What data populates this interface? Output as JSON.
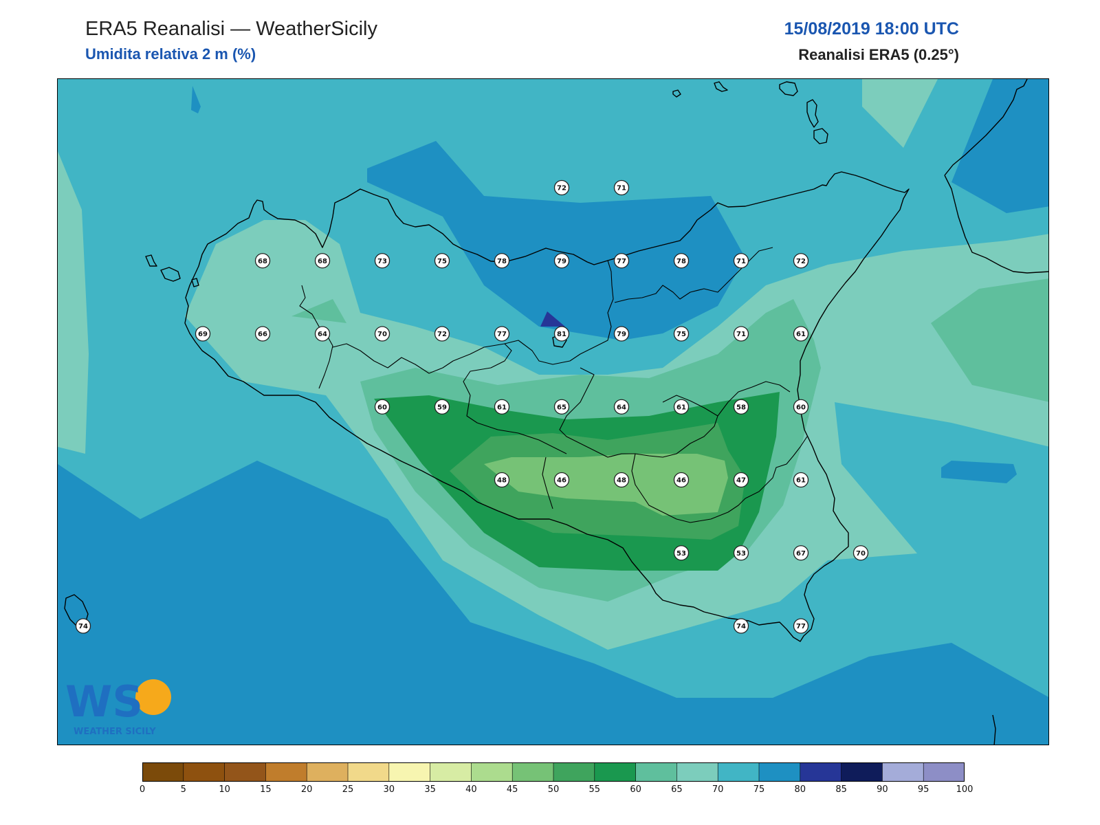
{
  "header": {
    "title": "ERA5 Reanalisi — WeatherSicily",
    "subtitle": "Umidita relativa 2 m (%)",
    "datetime": "15/08/2019 18:00 UTC",
    "source": "Reanalisi ERA5 (0.25°)"
  },
  "colors": {
    "accent": "#1a56b0",
    "levels": [
      "#7b4a0a",
      "#8e510f",
      "#93551a",
      "#c07d2c",
      "#deb05e",
      "#f1d98a",
      "#f7f5b0",
      "#d7eca4",
      "#acdc8e",
      "#76c276",
      "#3fa45d",
      "#1a984f",
      "#5fbf9d",
      "#7ccdbc",
      "#41b5c5",
      "#1e90c2",
      "#263697",
      "#0f1c5a",
      "#a4acd9",
      "#8d8ec6"
    ]
  },
  "logo": {
    "text": "WS",
    "caption": "WEATHER SICILY"
  },
  "colorbar": {
    "ticks": [
      "0",
      "5",
      "10",
      "15",
      "20",
      "25",
      "30",
      "35",
      "40",
      "45",
      "50",
      "55",
      "60",
      "65",
      "70",
      "75",
      "80",
      "85",
      "90",
      "95",
      "100"
    ]
  },
  "stations": [
    {
      "v": "72",
      "lon": 15.0,
      "lat": 38.45
    },
    {
      "v": "71",
      "lon": 15.5,
      "lat": 38.45
    },
    {
      "v": "68",
      "lon": 12.5,
      "lat": 38.2
    },
    {
      "v": "68",
      "lon": 13.0,
      "lat": 38.2
    },
    {
      "v": "73",
      "lon": 13.5,
      "lat": 38.2
    },
    {
      "v": "75",
      "lon": 14.0,
      "lat": 38.2
    },
    {
      "v": "78",
      "lon": 14.5,
      "lat": 38.2
    },
    {
      "v": "79",
      "lon": 15.0,
      "lat": 38.2
    },
    {
      "v": "77",
      "lon": 15.5,
      "lat": 38.2
    },
    {
      "v": "78",
      "lon": 16.0,
      "lat": 38.2
    },
    {
      "v": "71",
      "lon": 16.5,
      "lat": 38.2
    },
    {
      "v": "72",
      "lon": 17.0,
      "lat": 38.2
    },
    {
      "v": "69",
      "lon": 12.0,
      "lat": 37.95
    },
    {
      "v": "66",
      "lon": 12.5,
      "lat": 37.95
    },
    {
      "v": "64",
      "lon": 13.0,
      "lat": 37.95
    },
    {
      "v": "70",
      "lon": 13.5,
      "lat": 37.95
    },
    {
      "v": "72",
      "lon": 14.0,
      "lat": 37.95
    },
    {
      "v": "77",
      "lon": 14.5,
      "lat": 37.95
    },
    {
      "v": "81",
      "lon": 15.0,
      "lat": 37.95
    },
    {
      "v": "79",
      "lon": 15.5,
      "lat": 37.95
    },
    {
      "v": "75",
      "lon": 16.0,
      "lat": 37.95
    },
    {
      "v": "71",
      "lon": 16.5,
      "lat": 37.95
    },
    {
      "v": "61",
      "lon": 17.0,
      "lat": 37.95
    },
    {
      "v": "60",
      "lon": 13.5,
      "lat": 37.7
    },
    {
      "v": "59",
      "lon": 14.0,
      "lat": 37.7
    },
    {
      "v": "61",
      "lon": 14.5,
      "lat": 37.7
    },
    {
      "v": "65",
      "lon": 15.0,
      "lat": 37.7
    },
    {
      "v": "64",
      "lon": 15.5,
      "lat": 37.7
    },
    {
      "v": "61",
      "lon": 16.0,
      "lat": 37.7
    },
    {
      "v": "58",
      "lon": 16.5,
      "lat": 37.7
    },
    {
      "v": "60",
      "lon": 17.0,
      "lat": 37.7
    },
    {
      "v": "48",
      "lon": 14.5,
      "lat": 37.45
    },
    {
      "v": "46",
      "lon": 15.0,
      "lat": 37.45
    },
    {
      "v": "48",
      "lon": 15.5,
      "lat": 37.45
    },
    {
      "v": "46",
      "lon": 16.0,
      "lat": 37.45
    },
    {
      "v": "47",
      "lon": 16.5,
      "lat": 37.45
    },
    {
      "v": "61",
      "lon": 17.0,
      "lat": 37.45
    },
    {
      "v": "53",
      "lon": 16.0,
      "lat": 37.2
    },
    {
      "v": "53",
      "lon": 16.5,
      "lat": 37.2
    },
    {
      "v": "67",
      "lon": 17.0,
      "lat": 37.2
    },
    {
      "v": "70",
      "lon": 17.5,
      "lat": 37.2
    },
    {
      "v": "74",
      "lon": 11.0,
      "lat": 36.95
    },
    {
      "v": "74",
      "lon": 16.5,
      "lat": 36.95
    },
    {
      "v": "77",
      "lon": 17.0,
      "lat": 36.95
    }
  ]
}
